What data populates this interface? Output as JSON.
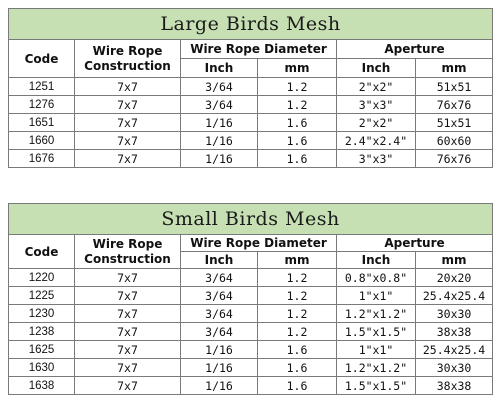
{
  "large": {
    "title": "Large Birds Mesh",
    "headers": {
      "code": "Code",
      "construction": "Wire Rope Construction",
      "diameter": "Wire Rope Diameter",
      "aperture": "Aperture",
      "inch": "Inch",
      "mm": "mm",
      "ap_inch": "Inch",
      "ap_mm": "mm"
    },
    "rows": [
      {
        "code": "1251",
        "construction": "7x7",
        "inch": "3/64",
        "mm": "1.2",
        "ap_inch": "2\"x2\"",
        "ap_mm": "51x51"
      },
      {
        "code": "1276",
        "construction": "7x7",
        "inch": "3/64",
        "mm": "1.2",
        "ap_inch": "3\"x3\"",
        "ap_mm": "76x76"
      },
      {
        "code": "1651",
        "construction": "7x7",
        "inch": "1/16",
        "mm": "1.6",
        "ap_inch": "2\"x2\"",
        "ap_mm": "51x51"
      },
      {
        "code": "1660",
        "construction": "7x7",
        "inch": "1/16",
        "mm": "1.6",
        "ap_inch": "2.4\"x2.4\"",
        "ap_mm": "60x60"
      },
      {
        "code": "1676",
        "construction": "7x7",
        "inch": "1/16",
        "mm": "1.6",
        "ap_inch": "3\"x3\"",
        "ap_mm": "76x76"
      }
    ]
  },
  "small": {
    "title": "Small Birds Mesh",
    "headers": {
      "code": "Code",
      "construction": "Wire Rope Construction",
      "diameter": "Wire Rope Diameter",
      "aperture": "Aperture",
      "inch": "Inch",
      "mm": "mm",
      "ap_inch": "Inch",
      "ap_mm": "mm"
    },
    "rows": [
      {
        "code": "1220",
        "construction": "7x7",
        "inch": "3/64",
        "mm": "1.2",
        "ap_inch": "0.8\"x0.8\"",
        "ap_mm": "20x20"
      },
      {
        "code": "1225",
        "construction": "7x7",
        "inch": "3/64",
        "mm": "1.2",
        "ap_inch": "1\"x1\"",
        "ap_mm": "25.4x25.4"
      },
      {
        "code": "1230",
        "construction": "7x7",
        "inch": "3/64",
        "mm": "1.2",
        "ap_inch": "1.2\"x1.2\"",
        "ap_mm": "30x30"
      },
      {
        "code": "1238",
        "construction": "7x7",
        "inch": "3/64",
        "mm": "1.2",
        "ap_inch": "1.5\"x1.5\"",
        "ap_mm": "38x38"
      },
      {
        "code": "1625",
        "construction": "7x7",
        "inch": "1/16",
        "mm": "1.6",
        "ap_inch": "1\"x1\"",
        "ap_mm": "25.4x25.4"
      },
      {
        "code": "1630",
        "construction": "7x7",
        "inch": "1/16",
        "mm": "1.6",
        "ap_inch": "1.2\"x1.2\"",
        "ap_mm": "30x30"
      },
      {
        "code": "1638",
        "construction": "7x7",
        "inch": "1/16",
        "mm": "1.6",
        "ap_inch": "1.5\"x1.5\"",
        "ap_mm": "38x38"
      }
    ]
  }
}
